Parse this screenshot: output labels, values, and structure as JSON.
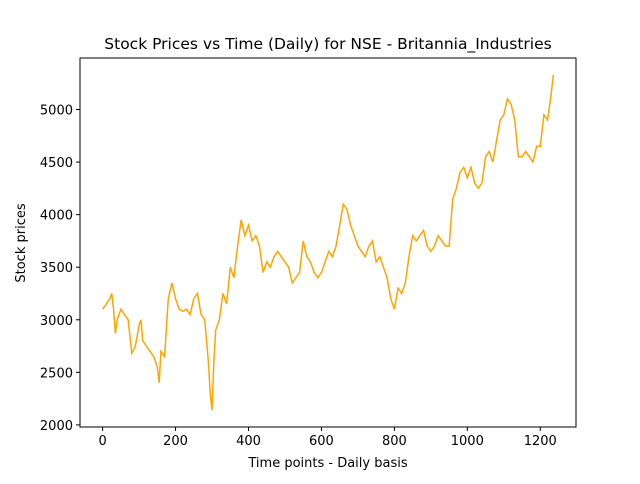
{
  "chart_data": {
    "type": "line",
    "title": "Stock Prices vs Time (Daily) for NSE - Britannia_Industries",
    "x_label": "Time points - Daily basis",
    "y_label": "Stock prices",
    "x": [
      0,
      10,
      20,
      25,
      30,
      35,
      40,
      50,
      60,
      70,
      80,
      90,
      100,
      105,
      110,
      120,
      130,
      140,
      150,
      155,
      160,
      170,
      180,
      190,
      200,
      210,
      220,
      230,
      240,
      250,
      260,
      270,
      280,
      290,
      295,
      300,
      305,
      310,
      320,
      330,
      340,
      350,
      360,
      370,
      380,
      390,
      400,
      410,
      420,
      430,
      440,
      450,
      460,
      470,
      480,
      490,
      500,
      510,
      520,
      530,
      540,
      550,
      560,
      570,
      580,
      590,
      600,
      610,
      620,
      630,
      640,
      650,
      660,
      670,
      680,
      690,
      700,
      710,
      720,
      730,
      740,
      750,
      760,
      770,
      780,
      790,
      800,
      810,
      820,
      830,
      840,
      850,
      860,
      870,
      880,
      890,
      900,
      910,
      920,
      930,
      940,
      950,
      960,
      970,
      980,
      990,
      1000,
      1010,
      1020,
      1030,
      1040,
      1050,
      1060,
      1070,
      1080,
      1090,
      1100,
      1110,
      1120,
      1130,
      1140,
      1150,
      1160,
      1170,
      1180,
      1190,
      1200,
      1210,
      1220,
      1230,
      1236
    ],
    "series": [
      {
        "name": "Britannia_Industries",
        "color": "#ffa500",
        "values": [
          3100,
          3150,
          3200,
          3250,
          3100,
          2870,
          3000,
          3100,
          3050,
          3000,
          2680,
          2750,
          2950,
          3000,
          2800,
          2750,
          2700,
          2650,
          2550,
          2400,
          2700,
          2650,
          3200,
          3350,
          3200,
          3100,
          3080,
          3100,
          3050,
          3200,
          3250,
          3050,
          3000,
          2600,
          2300,
          2140,
          2600,
          2900,
          3000,
          3250,
          3150,
          3500,
          3400,
          3700,
          3950,
          3800,
          3900,
          3750,
          3800,
          3700,
          3450,
          3550,
          3500,
          3600,
          3650,
          3600,
          3550,
          3500,
          3350,
          3400,
          3450,
          3750,
          3600,
          3550,
          3450,
          3400,
          3450,
          3550,
          3650,
          3600,
          3700,
          3900,
          4100,
          4050,
          3900,
          3800,
          3700,
          3650,
          3600,
          3700,
          3750,
          3550,
          3600,
          3500,
          3400,
          3200,
          3100,
          3300,
          3250,
          3350,
          3600,
          3800,
          3750,
          3800,
          3850,
          3700,
          3650,
          3700,
          3800,
          3750,
          3700,
          3700,
          4150,
          4250,
          4400,
          4450,
          4350,
          4450,
          4300,
          4250,
          4300,
          4550,
          4600,
          4500,
          4700,
          4900,
          4950,
          5100,
          5050,
          4900,
          4550,
          4550,
          4600,
          4550,
          4500,
          4650,
          4650,
          4950,
          4900,
          5150,
          5330
        ]
      }
    ],
    "xlim": [
      -62,
      1298
    ],
    "ylim": [
      1980,
      5490
    ],
    "xticks": [
      0,
      200,
      400,
      600,
      800,
      1000,
      1200
    ],
    "yticks": [
      2000,
      2500,
      3000,
      3500,
      4000,
      4500,
      5000
    ]
  }
}
